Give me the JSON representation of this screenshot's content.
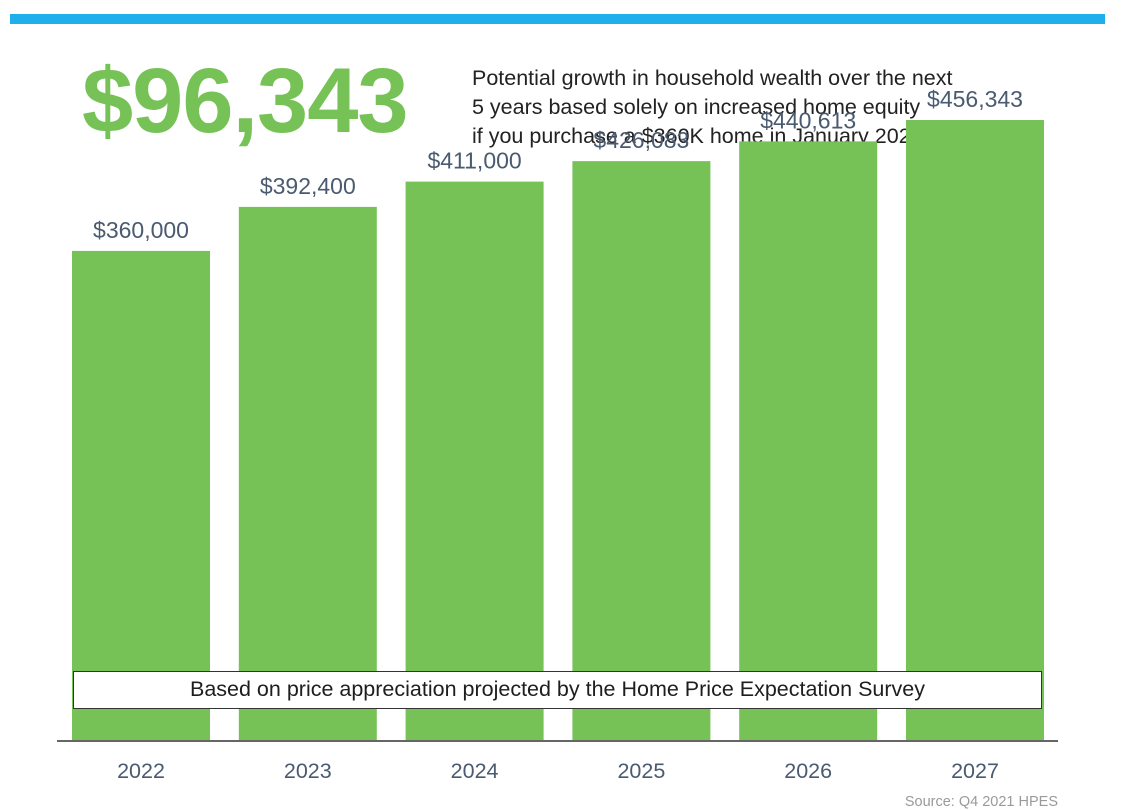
{
  "header": {
    "headline_value": "$96,343",
    "description_lines": [
      "Potential growth in household wealth over the next",
      "5 years based solely on increased home equity",
      "if you purchase a $360K home in January 2022"
    ],
    "accent_color": "#1fb0ec",
    "headline_color": "#76c257"
  },
  "chart_data": {
    "type": "bar",
    "categories": [
      "2022",
      "2023",
      "2024",
      "2025",
      "2026",
      "2027"
    ],
    "values": [
      360000,
      392400,
      411000,
      426083,
      440613,
      456343
    ],
    "value_labels": [
      "$360,000",
      "$392,400",
      "$411,000",
      "$426,083",
      "$440,613",
      "$456,343"
    ],
    "bar_color": "#76c257",
    "grid": false,
    "legend": "none"
  },
  "footnote": "Based on price appreciation projected by the Home Price Expectation Survey",
  "source": "Source: Q4 2021 HPES"
}
